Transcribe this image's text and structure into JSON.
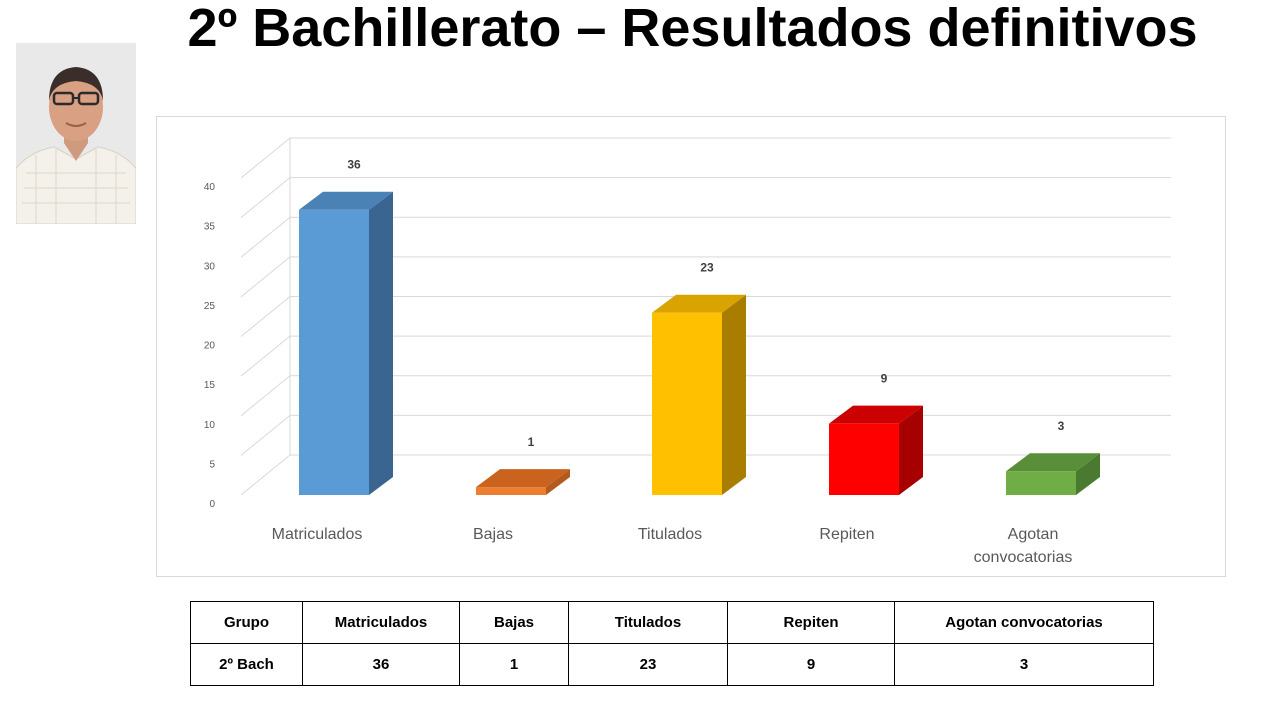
{
  "title": "2º Bachillerato – Resultados definitivos",
  "chart_data": {
    "type": "bar",
    "categories": [
      "Matriculados",
      "Bajas",
      "Titulados",
      "Repiten",
      "Agotan convocatorias"
    ],
    "values": [
      36,
      1,
      23,
      9,
      3
    ],
    "data_labels": [
      "36",
      "1",
      "23",
      "9",
      "3"
    ],
    "ylim": [
      0,
      40
    ],
    "yticks": [
      "0",
      "5",
      "10",
      "15",
      "20",
      "25",
      "30",
      "35",
      "40"
    ],
    "ytick_values": [
      0,
      5,
      10,
      15,
      20,
      25,
      30,
      35,
      40
    ],
    "grid": true,
    "style": "3d-column",
    "colors": [
      "#5b9bd5",
      "#ed7d31",
      "#ffc000",
      "#ff0000",
      "#70ad47"
    ],
    "side_colors": [
      "#3a6590",
      "#b35a1f",
      "#a87d00",
      "#a60000",
      "#4a7a30"
    ],
    "top_colors": [
      "#4a82b6",
      "#c9631e",
      "#d9a300",
      "#cc0000",
      "#5a8f39"
    ]
  },
  "table": {
    "headers": [
      "Grupo",
      "Matriculados",
      "Bajas",
      "Titulados",
      "Repiten",
      "Agotan convocatorias"
    ],
    "rows": [
      [
        "2º Bach",
        "36",
        "1",
        "23",
        "9",
        "3"
      ]
    ]
  }
}
